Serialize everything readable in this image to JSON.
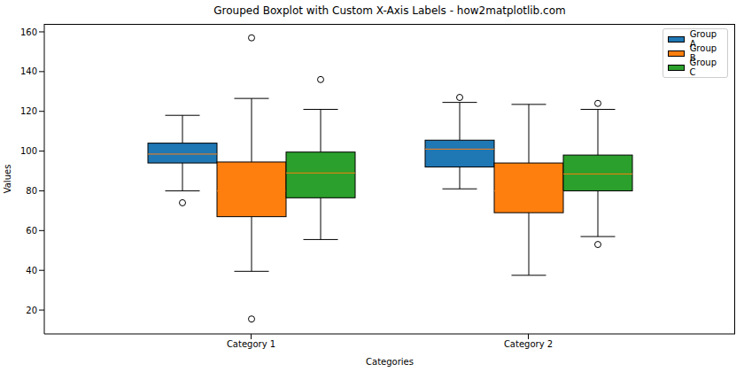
{
  "chart_data": {
    "type": "boxplot",
    "title": "Grouped Boxplot with Custom X-Axis Labels - how2matplotlib.com",
    "x_label": "Categories",
    "y_label": "Values",
    "categories": [
      "Category 1",
      "Category 2"
    ],
    "ylim": [
      8,
      164
    ],
    "yticks": [
      20,
      40,
      60,
      80,
      100,
      120,
      140,
      160
    ],
    "grid": false,
    "legend": "upper right",
    "series": [
      {
        "name": "Group A",
        "color": "#1f77b4",
        "boxes": [
          {
            "whisker_low": 80,
            "q1": 94,
            "median": 98.5,
            "q3": 104,
            "whisker_high": 118,
            "outliers": [
              74
            ]
          },
          {
            "whisker_low": 81,
            "q1": 92,
            "median": 101,
            "q3": 105.5,
            "whisker_high": 124.5,
            "outliers": [
              127
            ]
          }
        ]
      },
      {
        "name": "Group B",
        "color": "#ff7f0e",
        "boxes": [
          {
            "whisker_low": 39.5,
            "q1": 67,
            "median": 80,
            "q3": 94.5,
            "whisker_high": 126.5,
            "outliers": [
              157,
              15.5
            ]
          },
          {
            "whisker_low": 37.5,
            "q1": 69,
            "median": 80,
            "q3": 94,
            "whisker_high": 123.5,
            "outliers": []
          }
        ]
      },
      {
        "name": "Group C",
        "color": "#2ca02c",
        "boxes": [
          {
            "whisker_low": 55.5,
            "q1": 76.5,
            "median": 89,
            "q3": 99.5,
            "whisker_high": 121,
            "outliers": [
              136
            ]
          },
          {
            "whisker_low": 57,
            "q1": 80,
            "median": 88.5,
            "q3": 98,
            "whisker_high": 121,
            "outliers": [
              53,
              124
            ]
          }
        ]
      }
    ]
  }
}
